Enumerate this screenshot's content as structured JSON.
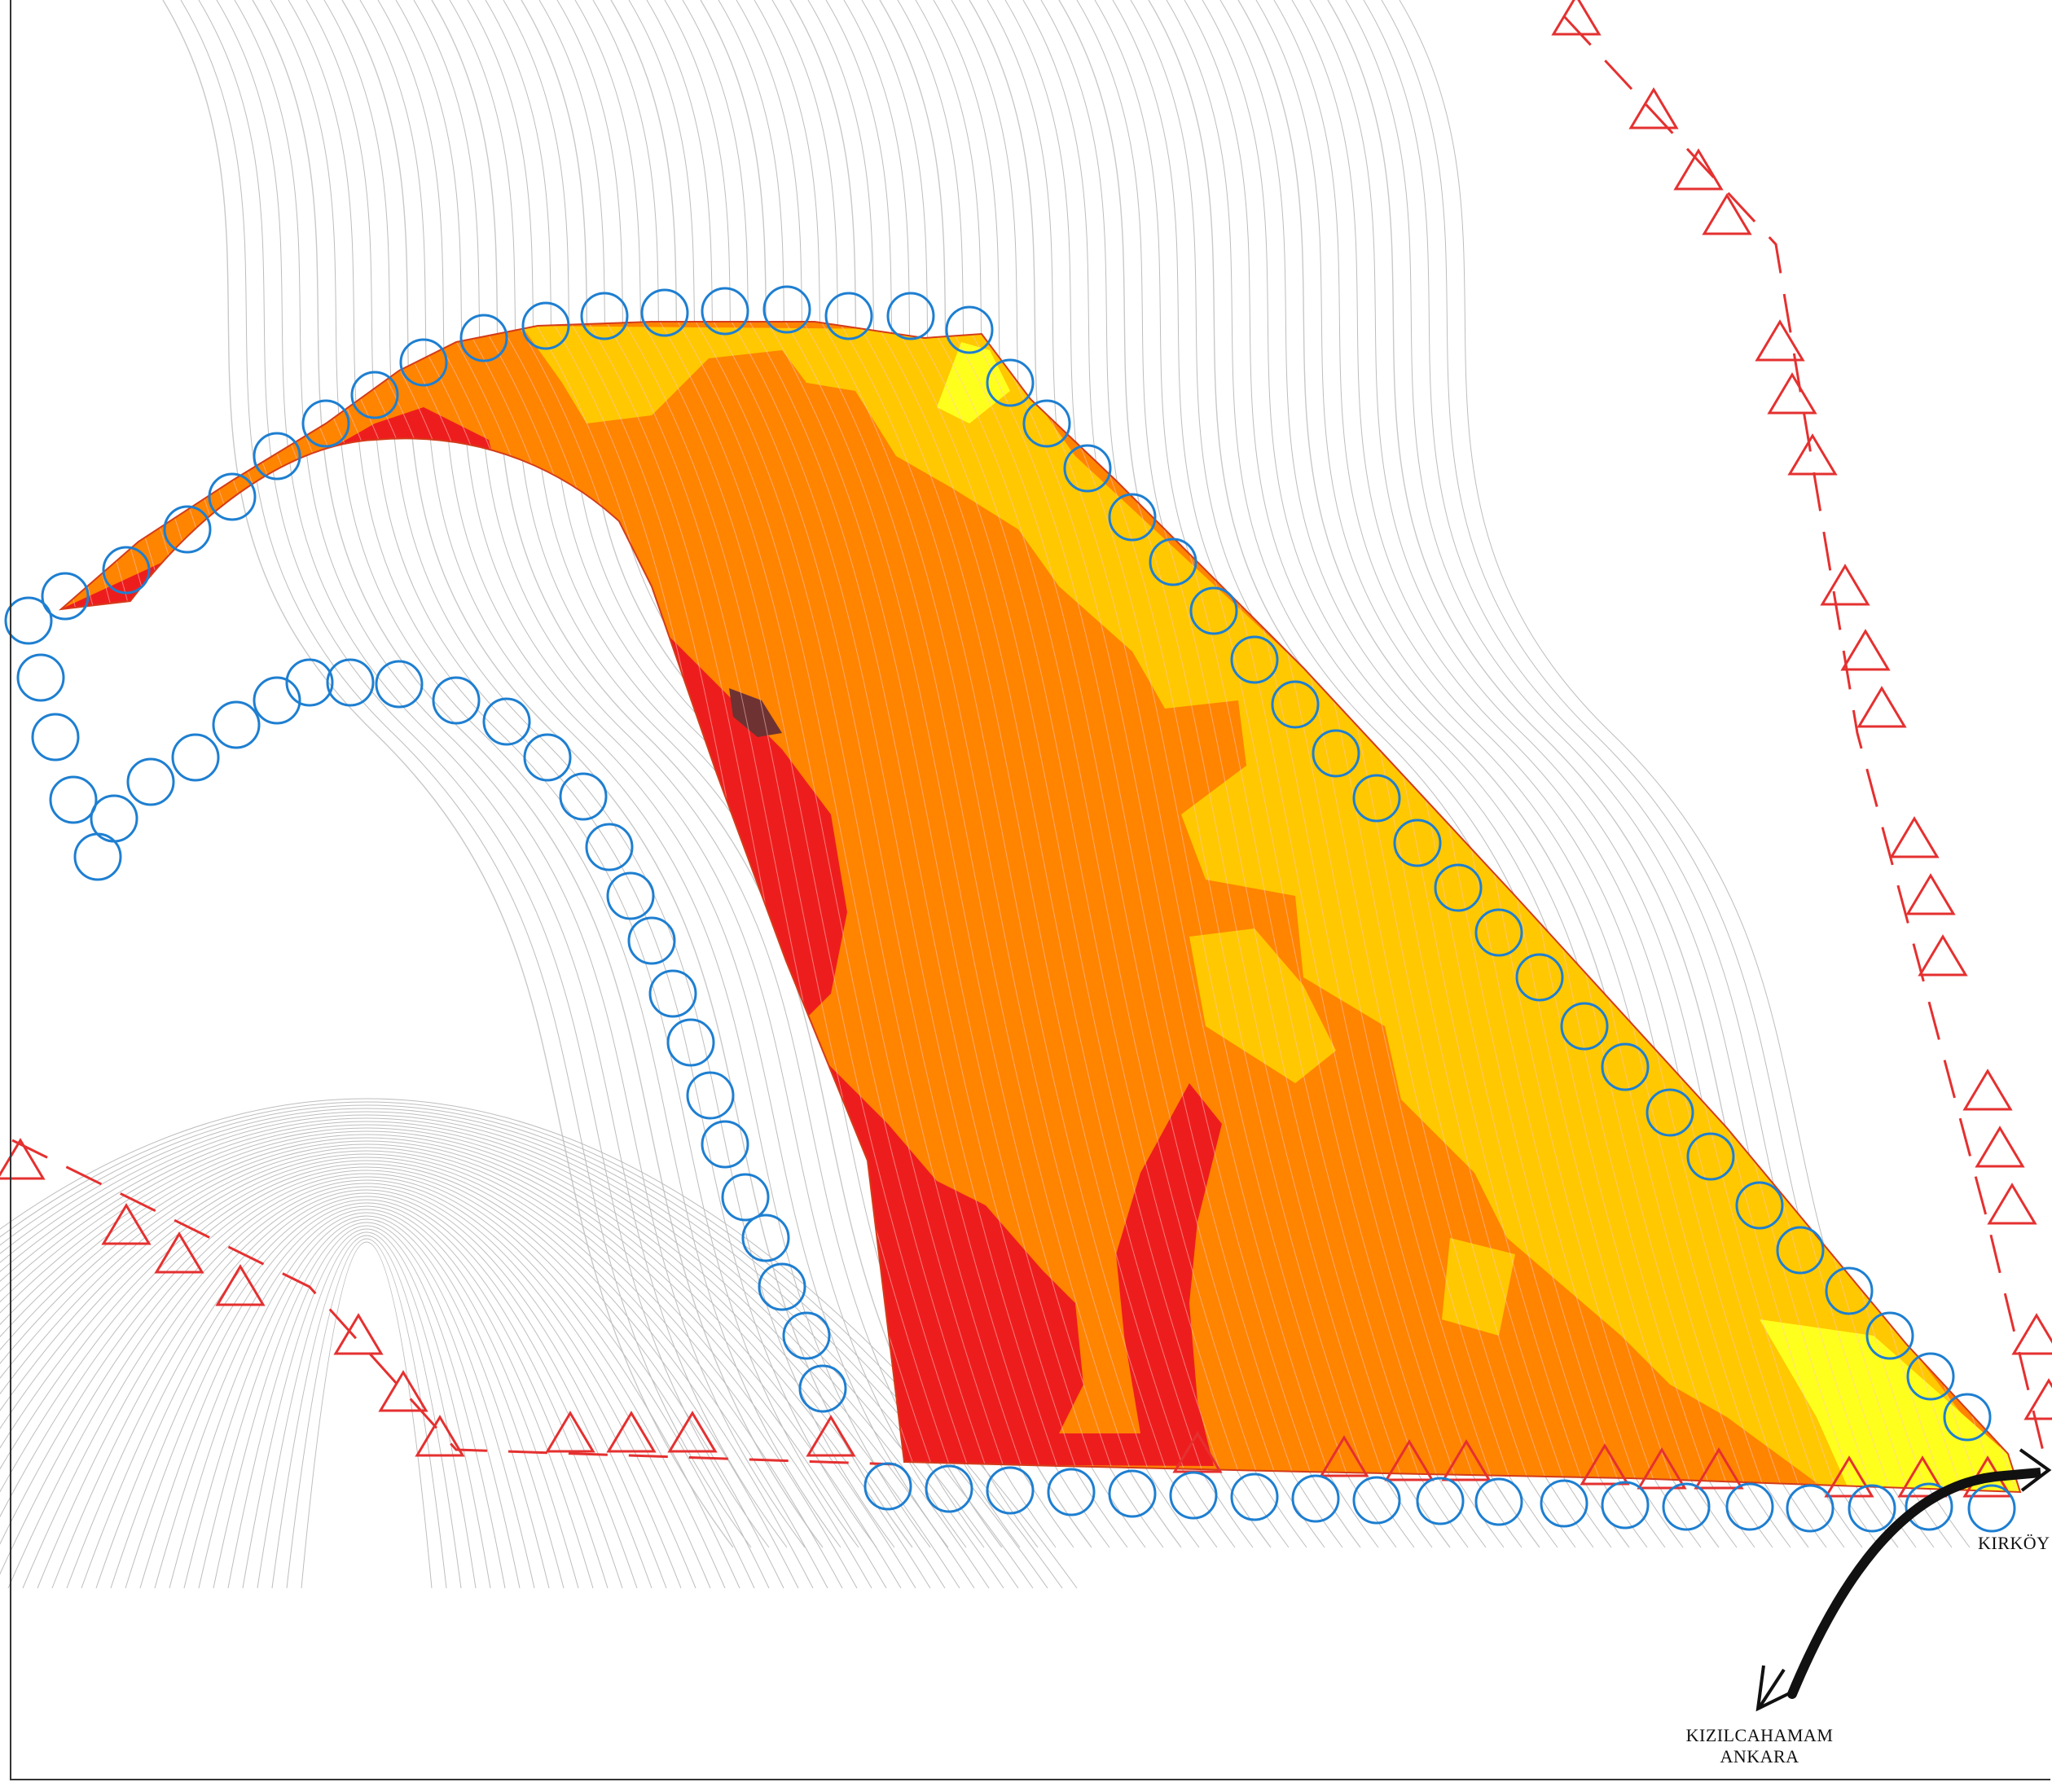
{
  "map": {
    "labels": {
      "kirkoy": "KIRKÖY",
      "kizilcahamam": "KIZILCAHAMAM",
      "ankara": "ANKARA"
    },
    "legend_colors": {
      "class_very_high": "#ee1d1d",
      "class_high": "#ff8400",
      "class_moderate": "#ffc800",
      "class_low": "#ffff1e",
      "class_extreme": "#6e3232",
      "buffer_circle": "#1e7fd1",
      "boundary_triangle": "#e53030",
      "contour_line": "#c9c9c9",
      "route_arrow": "#111111"
    },
    "icons": {
      "buffer_marker": "circle-icon",
      "boundary_marker": "triangle-icon",
      "route": "arrow-icon"
    }
  }
}
